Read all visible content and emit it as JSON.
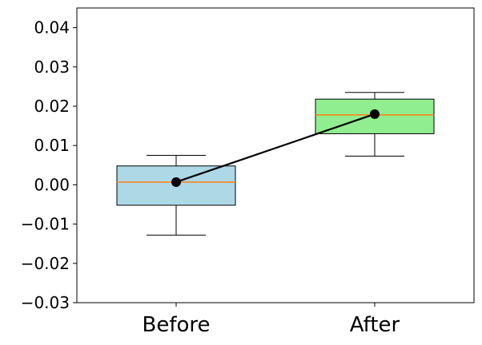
{
  "chart_data": {
    "type": "box",
    "title": "",
    "xlabel": "",
    "ylabel": "",
    "ylim": [
      -0.03,
      0.045
    ],
    "yticks": [
      -0.03,
      -0.02,
      -0.01,
      0.0,
      0.01,
      0.02,
      0.03,
      0.04
    ],
    "ytick_labels": [
      "−0.03",
      "−0.02",
      "−0.01",
      "0.00",
      "0.01",
      "0.02",
      "0.03",
      "0.04"
    ],
    "grid": false,
    "categories": [
      "Before",
      "After"
    ],
    "boxes": [
      {
        "category": "Before",
        "whisker_low": -0.0128,
        "q1": -0.0052,
        "median": 0.0007,
        "q3": 0.0048,
        "whisker_high": 0.0075,
        "fill": "#add8e6"
      },
      {
        "category": "After",
        "whisker_low": 0.0073,
        "q1": 0.013,
        "median": 0.0178,
        "q3": 0.0218,
        "whisker_high": 0.0235,
        "fill": "#90ee90"
      }
    ],
    "mean_line": {
      "values": [
        0.0007,
        0.018
      ],
      "color": "#000000"
    },
    "median_color": "#ff7f0e"
  }
}
